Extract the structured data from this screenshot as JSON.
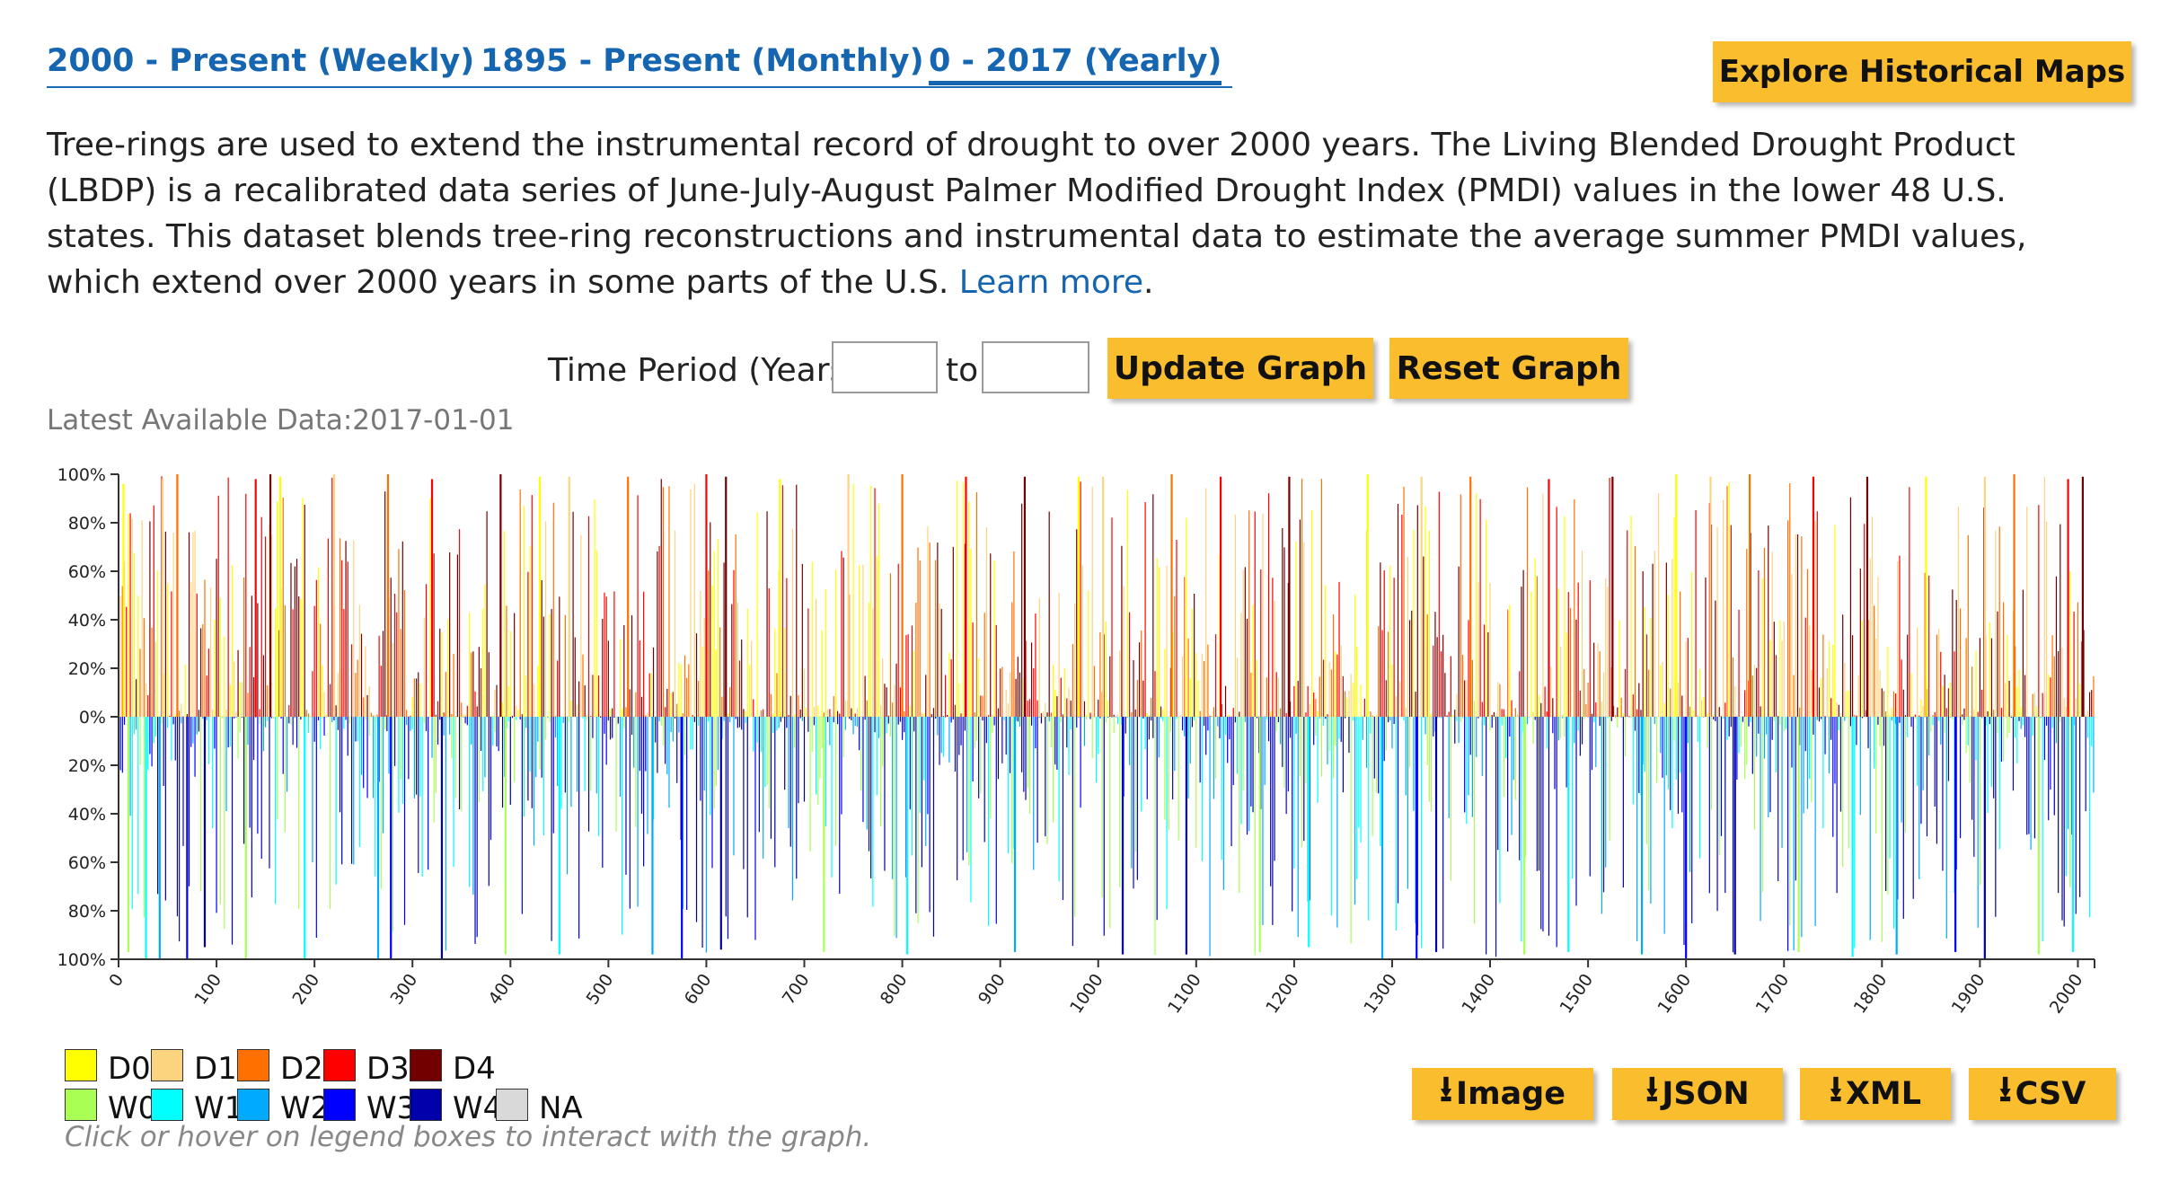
{
  "tabs": [
    {
      "label": "2000 - Present (Weekly)",
      "active": false
    },
    {
      "label": "1895 - Present (Monthly)",
      "active": false
    },
    {
      "label": "0 - 2017 (Yearly)",
      "active": true
    }
  ],
  "explore_button": "Explore Historical Maps",
  "description": {
    "text": "Tree-rings are used to extend the instrumental record of drought to over 2000 years. The Living Blended Drought Product (LBDP) is a recalibrated data series of June-July-August Palmer Modified Drought Index (PMDI) values in the lower 48 U.S. states. This dataset blends tree-ring reconstructions and instrumental data to estimate the average summer PMDI values, which extend over 2000 years in some parts of the U.S. ",
    "link": "Learn more",
    "end": "."
  },
  "controls": {
    "period_label": "Time Period (Years):",
    "from_value": "",
    "to_label": "to",
    "to_value": "",
    "update_button": "Update Graph",
    "reset_button": "Reset Graph"
  },
  "latest": "Latest Available Data:2017-01-01",
  "chart_data": {
    "type": "area",
    "x_range": [
      0,
      2017
    ],
    "x_ticks": [
      "0",
      "100",
      "200",
      "300",
      "400",
      "500",
      "600",
      "700",
      "800",
      "900",
      "1000",
      "1100",
      "1200",
      "1300",
      "1400",
      "1500",
      "1600",
      "1700",
      "1800",
      "1900",
      "2000"
    ],
    "y_range_dry": [
      0,
      100
    ],
    "y_range_wet": [
      0,
      100
    ],
    "y_ticks_upper": [
      "100%",
      "80%",
      "60%",
      "40%",
      "20%",
      "0%"
    ],
    "y_ticks_lower": [
      "20%",
      "40%",
      "60%",
      "80%",
      "100%"
    ],
    "dry_spikes": [
      [
        5,
        96
      ],
      [
        45,
        98
      ],
      [
        60,
        100
      ],
      [
        140,
        98
      ],
      [
        155,
        100
      ],
      [
        165,
        99
      ],
      [
        220,
        100
      ],
      [
        275,
        100
      ],
      [
        320,
        98
      ],
      [
        390,
        100
      ],
      [
        430,
        99
      ],
      [
        460,
        99
      ],
      [
        520,
        99
      ],
      [
        600,
        100
      ],
      [
        620,
        99
      ],
      [
        675,
        98
      ],
      [
        745,
        100
      ],
      [
        800,
        100
      ],
      [
        865,
        99
      ],
      [
        925,
        99
      ],
      [
        980,
        99
      ],
      [
        1005,
        99
      ],
      [
        1075,
        100
      ],
      [
        1125,
        99
      ],
      [
        1195,
        99
      ],
      [
        1275,
        100
      ],
      [
        1330,
        99
      ],
      [
        1380,
        99
      ],
      [
        1460,
        98
      ],
      [
        1525,
        99
      ],
      [
        1590,
        100
      ],
      [
        1625,
        99
      ],
      [
        1665,
        100
      ],
      [
        1730,
        99
      ],
      [
        1785,
        99
      ],
      [
        1845,
        99
      ],
      [
        1905,
        99
      ],
      [
        1935,
        100
      ],
      [
        1990,
        98
      ],
      [
        2005,
        99
      ]
    ],
    "wet_spikes": [
      [
        10,
        97
      ],
      [
        28,
        100
      ],
      [
        42,
        100
      ],
      [
        70,
        100
      ],
      [
        88,
        95
      ],
      [
        130,
        100
      ],
      [
        190,
        100
      ],
      [
        265,
        100
      ],
      [
        278,
        100
      ],
      [
        330,
        100
      ],
      [
        395,
        98
      ],
      [
        450,
        98
      ],
      [
        545,
        98
      ],
      [
        575,
        100
      ],
      [
        615,
        96
      ],
      [
        720,
        97
      ],
      [
        805,
        98
      ],
      [
        915,
        97
      ],
      [
        1025,
        98
      ],
      [
        1090,
        98
      ],
      [
        1165,
        97
      ],
      [
        1215,
        95
      ],
      [
        1290,
        100
      ],
      [
        1325,
        100
      ],
      [
        1345,
        97
      ],
      [
        1435,
        98
      ],
      [
        1480,
        97
      ],
      [
        1555,
        98
      ],
      [
        1600,
        100
      ],
      [
        1650,
        98
      ],
      [
        1715,
        97
      ],
      [
        1770,
        99
      ],
      [
        1815,
        98
      ],
      [
        1875,
        97
      ],
      [
        1905,
        100
      ],
      [
        1960,
        98
      ],
      [
        1995,
        97
      ]
    ],
    "legend": [
      {
        "label": "D0",
        "color": "#ffff00"
      },
      {
        "label": "D1",
        "color": "#fcd37f"
      },
      {
        "label": "D2",
        "color": "#ff7000"
      },
      {
        "label": "D3",
        "color": "#ff0000"
      },
      {
        "label": "D4",
        "color": "#730000"
      },
      {
        "label": "W0",
        "color": "#aaff55"
      },
      {
        "label": "W1",
        "color": "#00ffff"
      },
      {
        "label": "W2",
        "color": "#00aaff"
      },
      {
        "label": "W3",
        "color": "#0000ff"
      },
      {
        "label": "W4",
        "color": "#0000aa"
      },
      {
        "label": "NA",
        "color": "#d9d9d9"
      }
    ]
  },
  "hint": "Click or hover on legend boxes to interact with the graph.",
  "downloads": [
    "Image",
    "JSON",
    "XML",
    "CSV"
  ]
}
